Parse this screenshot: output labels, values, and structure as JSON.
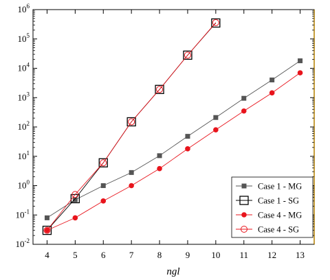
{
  "chart_data": {
    "type": "line",
    "xlabel": "ngl",
    "ylabel": "",
    "x_ticks": [
      4,
      5,
      6,
      7,
      8,
      9,
      10,
      11,
      12,
      13
    ],
    "xlim": [
      3.5,
      13.5
    ],
    "yscale": "log",
    "ylim": [
      0.01,
      1000000
    ],
    "y_ticks": [
      {
        "value": 0.01,
        "base": "10",
        "exp": "-2"
      },
      {
        "value": 0.1,
        "base": "10",
        "exp": "-1"
      },
      {
        "value": 1,
        "base": "10",
        "exp": "0"
      },
      {
        "value": 10,
        "base": "10",
        "exp": "1"
      },
      {
        "value": 100,
        "base": "10",
        "exp": "2"
      },
      {
        "value": 1000,
        "base": "10",
        "exp": "3"
      },
      {
        "value": 10000,
        "base": "10",
        "exp": "4"
      },
      {
        "value": 100000,
        "base": "10",
        "exp": "5"
      },
      {
        "value": 1000000,
        "base": "10",
        "exp": "6"
      }
    ],
    "legend_position": "bottom-right",
    "grid": false,
    "series": [
      {
        "name": "Case 1 - MG",
        "color": "#555555",
        "marker": "filled-square",
        "x": [
          4,
          5,
          6,
          7,
          8,
          9,
          10,
          11,
          12,
          13
        ],
        "values": [
          0.08,
          0.33,
          1.0,
          2.8,
          10.5,
          48,
          210,
          950,
          4000,
          18000
        ]
      },
      {
        "name": "Case 1 - SG",
        "color": "#000000",
        "marker": "open-square",
        "x": [
          4,
          5,
          6,
          7,
          8,
          9,
          10
        ],
        "values": [
          0.03,
          0.36,
          6.0,
          150,
          1900,
          28000,
          350000
        ]
      },
      {
        "name": "Case 4 - MG",
        "color": "#e8141c",
        "marker": "filled-circle",
        "x": [
          4,
          5,
          6,
          7,
          8,
          9,
          10,
          11,
          12,
          13
        ],
        "values": [
          0.03,
          0.08,
          0.3,
          1.0,
          3.8,
          18,
          80,
          350,
          1450,
          7000
        ]
      },
      {
        "name": "Case 4 - SG",
        "color": "#e8141c",
        "marker": "open-circle",
        "x": [
          4,
          5,
          6,
          7,
          8,
          9,
          10
        ],
        "values": [
          0.03,
          0.5,
          6.0,
          150,
          1900,
          28000,
          360000
        ]
      }
    ]
  }
}
